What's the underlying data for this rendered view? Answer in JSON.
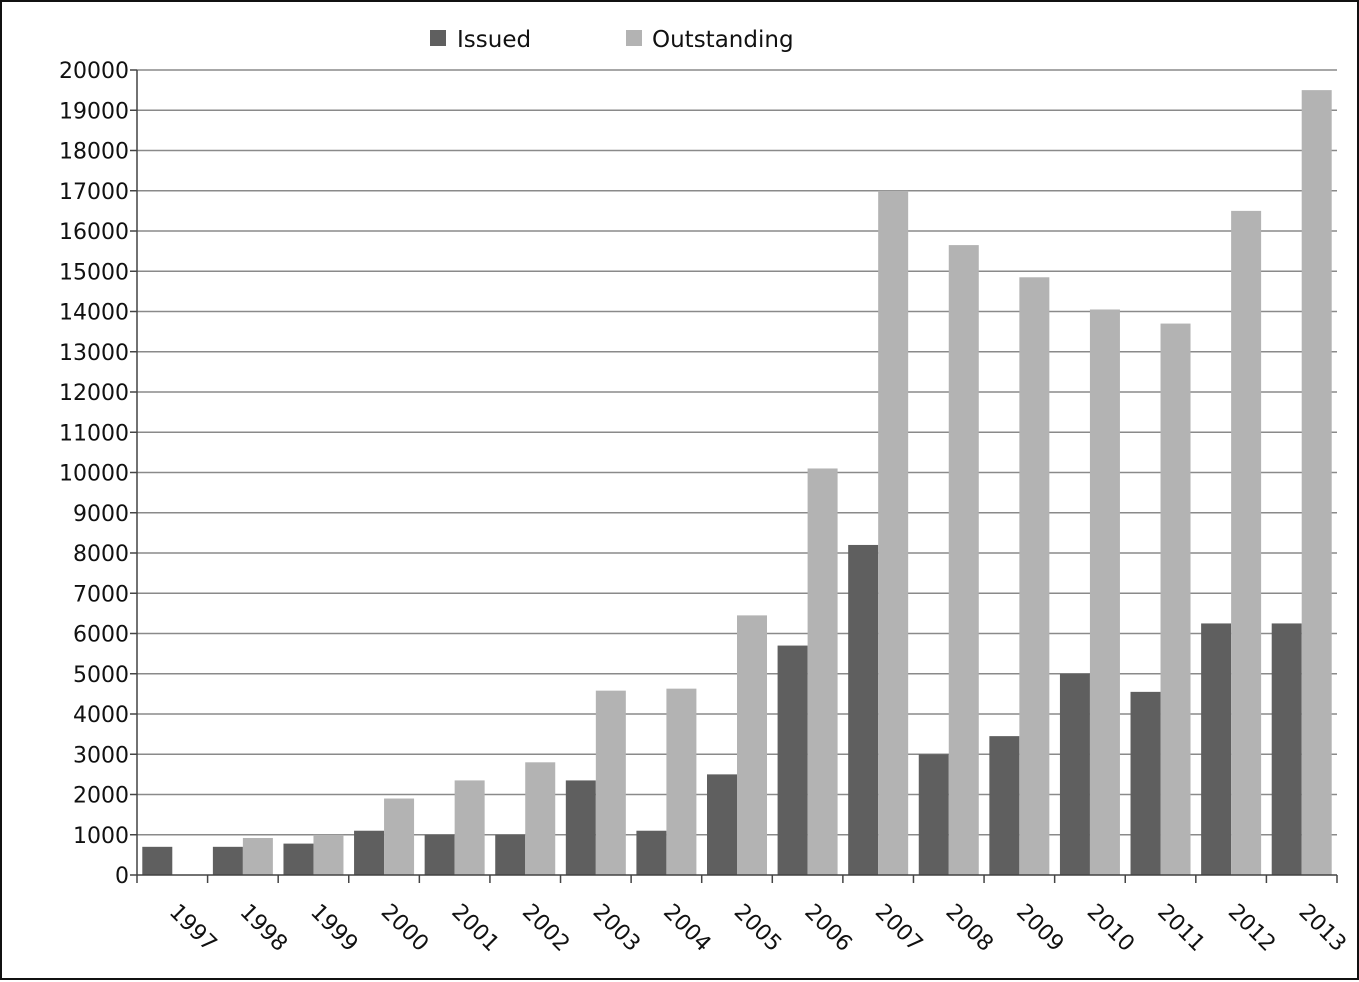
{
  "chart_data": {
    "type": "bar",
    "categories": [
      "1997",
      "1998",
      "1999",
      "2000",
      "2001",
      "2002",
      "2003",
      "2004",
      "2005",
      "2006",
      "2007",
      "2008",
      "2009",
      "2010",
      "2011",
      "2012",
      "2013"
    ],
    "series": [
      {
        "name": "Issued",
        "color": "#5f5f5f",
        "values": [
          700,
          700,
          780,
          1100,
          1000,
          1000,
          2350,
          1100,
          2500,
          5700,
          8200,
          3000,
          3450,
          5000,
          4550,
          6250,
          6250
        ]
      },
      {
        "name": "Outstanding",
        "color": "#b3b3b3",
        "values": [
          0,
          920,
          1000,
          1900,
          2350,
          2800,
          4580,
          4630,
          6450,
          10100,
          17000,
          15650,
          14850,
          14050,
          13700,
          16500,
          19500
        ]
      }
    ],
    "yticks": [
      "0",
      "1000",
      "2000",
      "3000",
      "4000",
      "5000",
      "6000",
      "7000",
      "8000",
      "9000",
      "10000",
      "11000",
      "12000",
      "13000",
      "14000",
      "15000",
      "16000",
      "17000",
      "18000",
      "19000",
      "20000"
    ],
    "ylim": [
      0,
      20000
    ],
    "grid": true,
    "legend_position": "top-center",
    "title": "",
    "xlabel": "",
    "ylabel": ""
  }
}
